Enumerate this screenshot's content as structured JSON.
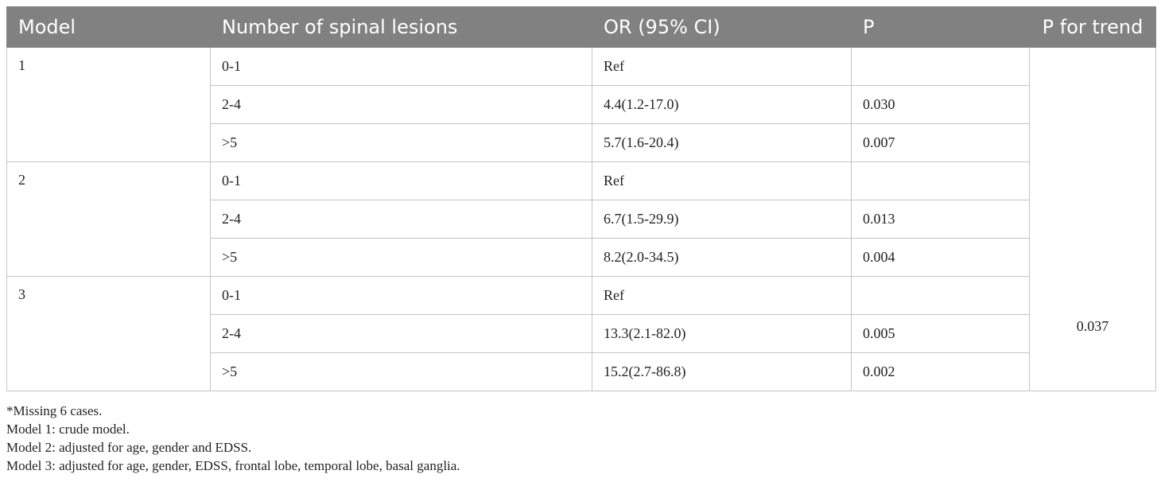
{
  "table": {
    "headers": [
      "Model",
      "Number of spinal lesions",
      "OR (95% CI)",
      "P",
      "P for trend"
    ],
    "models": [
      {
        "label": "1",
        "rows": [
          {
            "lesions": "0-1",
            "or": "Ref",
            "p": ""
          },
          {
            "lesions": "2-4",
            "or": "4.4(1.2-17.0)",
            "p": "0.030"
          },
          {
            "lesions": ">5",
            "or": "5.7(1.6-20.4)",
            "p": "0.007"
          }
        ]
      },
      {
        "label": "2",
        "rows": [
          {
            "lesions": "0-1",
            "or": "Ref",
            "p": ""
          },
          {
            "lesions": "2-4",
            "or": "6.7(1.5-29.9)",
            "p": "0.013"
          },
          {
            "lesions": ">5",
            "or": "8.2(2.0-34.5)",
            "p": "0.004"
          }
        ]
      },
      {
        "label": "3",
        "rows": [
          {
            "lesions": "0-1",
            "or": "Ref",
            "p": ""
          },
          {
            "lesions": "2-4",
            "or": "13.3(2.1-82.0)",
            "p": "0.005"
          },
          {
            "lesions": ">5",
            "or": "15.2(2.7-86.8)",
            "p": "0.002"
          }
        ]
      }
    ],
    "p_for_trend": "0.037",
    "header_color": "#818181"
  },
  "notes": [
    "*Missing 6 cases.",
    "Model 1: crude model.",
    "Model 2: adjusted for age, gender and EDSS.",
    "Model 3: adjusted for age, gender, EDSS, frontal lobe, temporal lobe, basal ganglia."
  ]
}
